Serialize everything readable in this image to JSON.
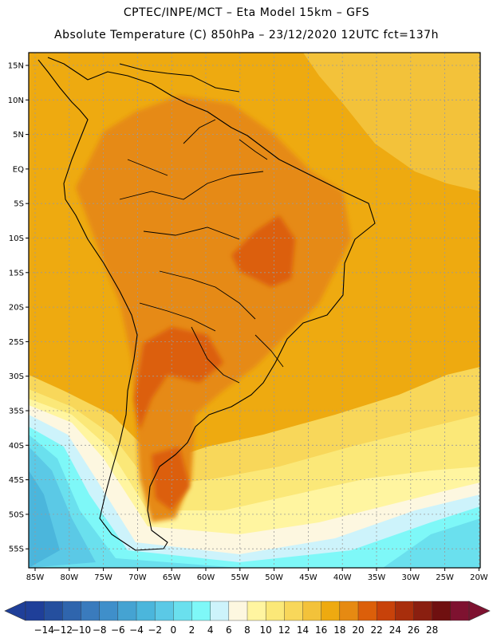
{
  "header": {
    "line1": "CPTEC/INPE/MCT –  Eta Model 15km – GFS",
    "line2": "Absolute Temperature (C) 850hPa – 23/12/2020 12UTC fct=137h"
  },
  "lat_labels": [
    "15N",
    "10N",
    "5N",
    "EQ",
    "5S",
    "10S",
    "15S",
    "20S",
    "25S",
    "30S",
    "35S",
    "40S",
    "45S",
    "50S",
    "55S"
  ],
  "lon_labels": [
    "85W",
    "80W",
    "75W",
    "70W",
    "65W",
    "60W",
    "55W",
    "50W",
    "45W",
    "40W",
    "35W",
    "30W",
    "25W",
    "20W"
  ],
  "colorbar": {
    "labels": [
      "-14",
      "-12",
      "-10",
      "-8",
      "-6",
      "-4",
      "-2",
      "0",
      "2",
      "4",
      "6",
      "8",
      "10",
      "12",
      "14",
      "16",
      "18",
      "20",
      "22",
      "24",
      "26",
      "28"
    ],
    "colors": [
      "#1f3f99",
      "#254f9e",
      "#2f65ad",
      "#3a7bbd",
      "#3f8fca",
      "#45a3d2",
      "#4bb6dc",
      "#5bc9e6",
      "#6ae0ee",
      "#7ef8f8",
      "#cdf3fb",
      "#fdf7e0",
      "#fff5a0",
      "#fbe878",
      "#f8d75a",
      "#f3c23a",
      "#eeaa10",
      "#e68a12",
      "#dc5f0a",
      "#c8420a",
      "#a82e0c",
      "#8a1f10",
      "#6f1010",
      "#7e1230"
    ]
  },
  "map_colors": {
    "ocean_warm": "#eeaa10",
    "ocean_mild": "#f3c23a",
    "land_hot": "#e68a12",
    "land_hotter": "#dc5f0a",
    "band_14": "#f8d75a",
    "band_12": "#fbe878",
    "band_10": "#fff5a0",
    "band_8": "#fdf7e0",
    "band_6": "#cdf3fb",
    "band_4": "#7ef8f8",
    "band_2": "#6ae0ee",
    "band_0": "#5bc9e6",
    "band_m2": "#4bb6dc",
    "coast": "#000000",
    "grid": "#9a9a9a"
  }
}
